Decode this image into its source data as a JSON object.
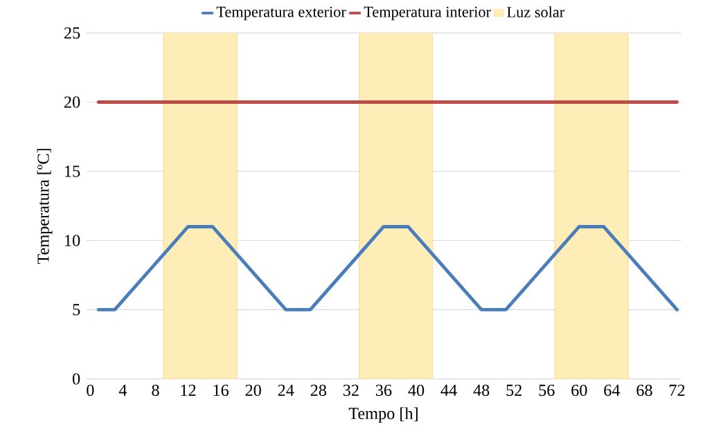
{
  "chart_data": {
    "type": "line",
    "xlabel": "Tempo [h]",
    "ylabel": "Temperatura [ºC]",
    "series": [
      {
        "name": "Temperatura exterior",
        "color": "#4a7ebb",
        "x": [
          1,
          3,
          12,
          15,
          24,
          27,
          36,
          39,
          48,
          51,
          60,
          63,
          72
        ],
        "values": [
          5,
          5,
          11,
          11,
          5,
          5,
          11,
          11,
          5,
          5,
          11,
          11,
          5
        ]
      },
      {
        "name": "Temperatura interior",
        "color": "#be4b48",
        "x": [
          1,
          72
        ],
        "values": [
          20,
          20
        ]
      }
    ],
    "bands": [
      {
        "axis": "x",
        "from": 9,
        "to": 18,
        "label": "Luz solar",
        "color": "#ffedb8"
      },
      {
        "axis": "x",
        "from": 33,
        "to": 42,
        "color": "#ffedb8"
      },
      {
        "axis": "x",
        "from": 57,
        "to": 66,
        "color": "#ffedb8"
      }
    ],
    "xlim": [
      -0.5,
      72.5
    ],
    "ylim": [
      0,
      25
    ],
    "xticks": [
      0,
      4,
      8,
      12,
      16,
      20,
      24,
      28,
      32,
      36,
      40,
      44,
      48,
      52,
      56,
      60,
      64,
      68,
      72
    ],
    "yticks": [
      0,
      5,
      10,
      15,
      20,
      25
    ],
    "grid": "y",
    "legend": "top",
    "line_style": "solid",
    "marker": "none"
  }
}
